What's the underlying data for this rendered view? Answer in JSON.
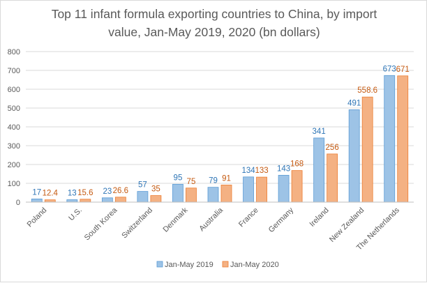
{
  "chart_data": {
    "type": "bar",
    "title_lines": [
      "Top 11 infant formula exporting countries to China, by import",
      "value, Jan-May 2019, 2020 (bn dollars)"
    ],
    "categories": [
      "Poland",
      "U.S.",
      "South Korea",
      "Switzerland",
      "Denmark",
      "Australia",
      "France",
      "Germany",
      "Ireland",
      "New Zealand",
      "The Netherlands"
    ],
    "series": [
      {
        "name": "Jan-May 2019",
        "values": [
          17,
          13,
          23,
          57,
          95,
          79,
          134,
          143,
          341,
          491,
          673
        ],
        "labels": [
          "17",
          "13",
          "23",
          "57",
          "95",
          "79",
          "134",
          "143",
          "341",
          "491",
          "673"
        ],
        "color": "#9dc3e6",
        "stroke": "#5b9bd5",
        "label_color": "#2e75b6"
      },
      {
        "name": "Jan-May 2020",
        "values": [
          12.4,
          15.6,
          26.6,
          35,
          75,
          91,
          133,
          168,
          256,
          558.6,
          671
        ],
        "labels": [
          "12.4",
          "15.6",
          "26.6",
          "35",
          "75",
          "91",
          "133",
          "168",
          "256",
          "558.6",
          "671"
        ],
        "color": "#f4b183",
        "stroke": "#ed7d31",
        "label_color": "#c55a11"
      }
    ],
    "ylim": [
      0,
      800
    ],
    "yticks": [
      "0",
      "100",
      "200",
      "300",
      "400",
      "500",
      "600",
      "700",
      "800"
    ],
    "grid": true,
    "legend_position": "bottom"
  }
}
